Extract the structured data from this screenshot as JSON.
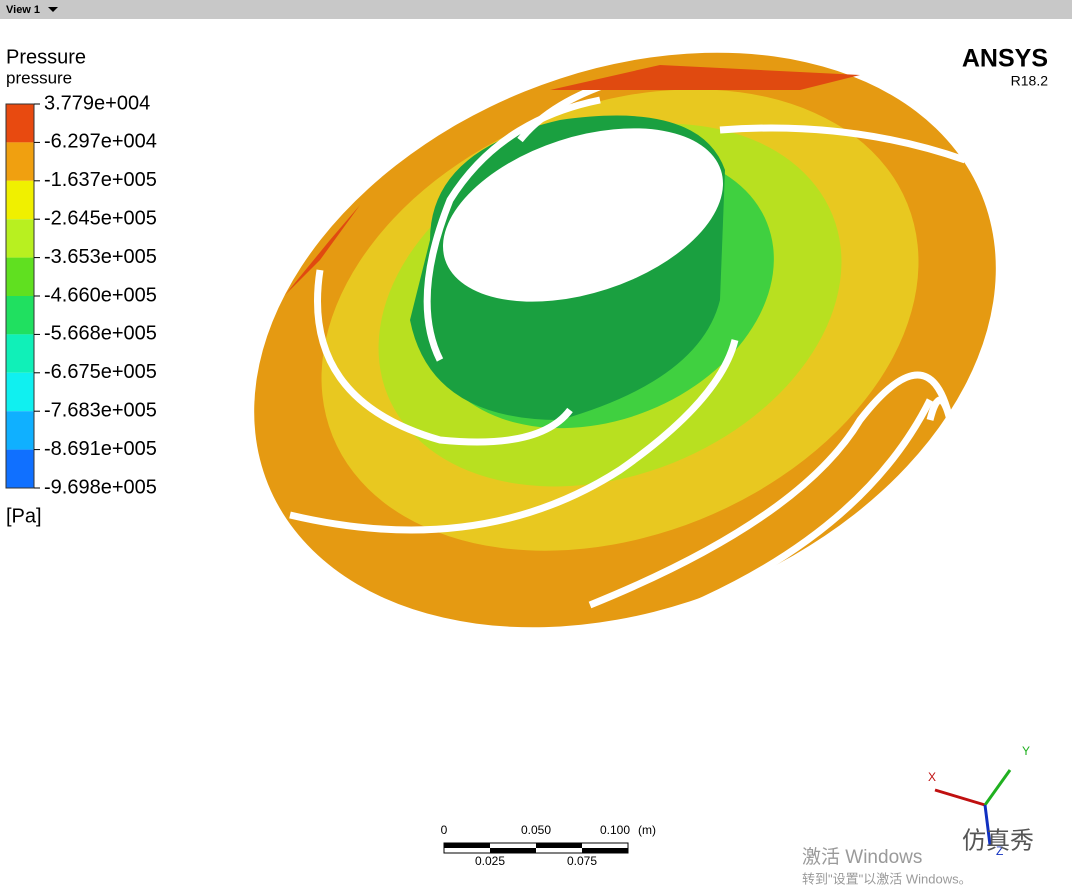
{
  "view_tab": {
    "label": "View 1"
  },
  "legend": {
    "title": "Pressure",
    "variable": "pressure",
    "labels": [
      "3.779e+004",
      "-6.297e+004",
      "-1.637e+005",
      "-2.645e+005",
      "-3.653e+005",
      "-4.660e+005",
      "-5.668e+005",
      "-6.675e+005",
      "-7.683e+005",
      "-8.691e+005",
      "-9.698e+005"
    ],
    "colors": [
      "#e84a10",
      "#f0a010",
      "#f0f000",
      "#b8f020",
      "#60e020",
      "#20e060",
      "#10f0b8",
      "#10f0f0",
      "#10b0ff",
      "#1070ff",
      "#1040ff"
    ],
    "unit": "[Pa]"
  },
  "logo": {
    "brand": "ANSYS",
    "version": "R18.2"
  },
  "scale_bar": {
    "top_labels": [
      "0",
      "0.050",
      "0.100"
    ],
    "unit": "(m)",
    "bottom_labels": [
      "0.025",
      "0.075"
    ]
  },
  "axes": {
    "x": "X",
    "y": "Y",
    "z": "Z"
  },
  "watermark": {
    "brand": "仿真秀",
    "activate": "激活 Windows",
    "activate_hint": "转到\"设置\"以激活 Windows。"
  }
}
